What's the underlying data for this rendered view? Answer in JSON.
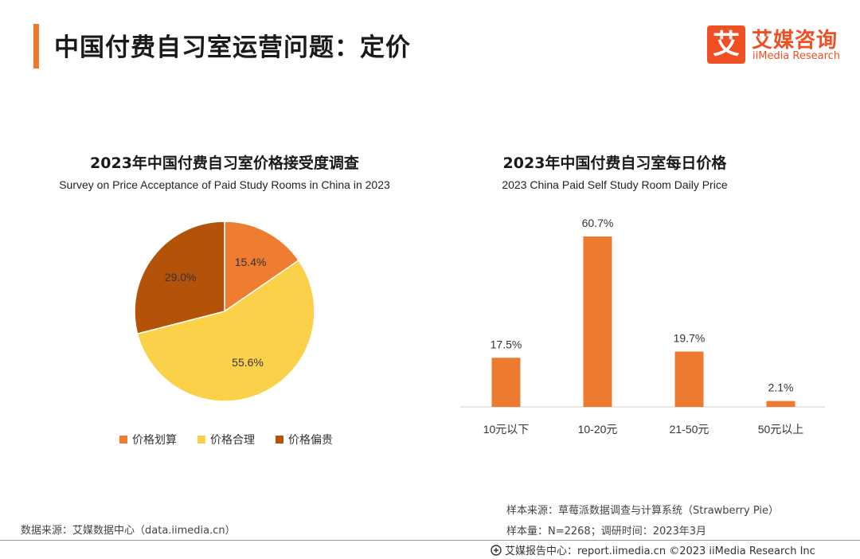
{
  "header": {
    "title": "中国付费自习室运营问题：定价",
    "logo_mark": "艾",
    "logo_cn": "艾媒咨询",
    "logo_en": "iiMedia Research"
  },
  "colors": {
    "accent": "#f07a2c",
    "logo": "#f04e23",
    "bar": "#ee7a30",
    "pie": [
      "#ee7d31",
      "#fcd14a",
      "#b45209"
    ]
  },
  "chart_data": [
    {
      "type": "pie",
      "title": "2023年中国付费自习室价格接受度调查",
      "subtitle": "Survey on Price Acceptance of Paid Study Rooms in China in 2023",
      "categories": [
        "价格划算",
        "价格合理",
        "价格偏贵"
      ],
      "values": [
        15.4,
        55.6,
        29.0
      ],
      "labels": [
        "15.4%",
        "55.6%",
        "29.0%"
      ],
      "legend_position": "bottom"
    },
    {
      "type": "bar",
      "title": "2023年中国付费自习室每日价格",
      "subtitle": "2023 China Paid Self Study Room Daily Price",
      "categories": [
        "10元以下",
        "10-20元",
        "21-50元",
        "50元以上"
      ],
      "values": [
        17.5,
        60.7,
        19.7,
        2.1
      ],
      "labels": [
        "17.5%",
        "60.7%",
        "19.7%",
        "2.1%"
      ],
      "ylim": [
        0,
        60.7
      ],
      "grid": false
    }
  ],
  "notes": {
    "data_source": "数据来源：艾媒数据中心（data.iimedia.cn）",
    "sample_source": "样本来源：草莓派数据调查与计算系统（Strawberry Pie）",
    "sample_size": "样本量：N=2268；调研时间：2023年3月"
  },
  "footer": {
    "icon": "report-icon",
    "text": "艾媒报告中心：report.iimedia.cn  ©2023  iiMedia Research  Inc"
  }
}
